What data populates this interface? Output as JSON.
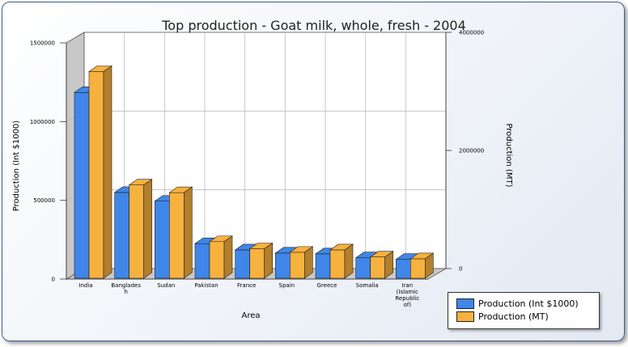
{
  "chart_data": {
    "type": "bar",
    "title": "Top production - Goat milk, whole, fresh - 2004",
    "xlabel": "Area",
    "ylabel_left": "Production (Int $1000)",
    "ylabel_right": "Production (MT)",
    "categories": [
      "India",
      "Banglades h",
      "Sudan",
      "Pakistan",
      "France",
      "Spain",
      "Greece",
      "Somalia",
      "Iran (Islamic Republic of)"
    ],
    "category_lines": [
      [
        "India"
      ],
      [
        "Banglades",
        "h"
      ],
      [
        "Sudan"
      ],
      [
        "Pakistan"
      ],
      [
        "France"
      ],
      [
        "Spain"
      ],
      [
        "Greece"
      ],
      [
        "Somalia"
      ],
      [
        "Iran",
        "(Islamic",
        "Republic",
        "of)"
      ]
    ],
    "left_ticks": [
      "1500000",
      "1000000",
      "500000",
      "0"
    ],
    "right_ticks": [
      "4000000",
      "2000000",
      "0"
    ],
    "ylim_left": [
      0,
      1500000
    ],
    "ylim_right": [
      0,
      4000000
    ],
    "grid": true,
    "legend_position": "bottom-right",
    "series": [
      {
        "name": "Production (Int $1000)",
        "axis": "left",
        "color": "#3f86e8",
        "values": [
          1180000,
          545000,
          490000,
          220000,
          180000,
          160000,
          155000,
          130000,
          120000
        ]
      },
      {
        "name": "Production (MT)",
        "axis": "right",
        "color": "#f7b13e",
        "values": [
          3500000,
          1580000,
          1450000,
          620000,
          500000,
          440000,
          480000,
          360000,
          330000
        ]
      }
    ]
  }
}
